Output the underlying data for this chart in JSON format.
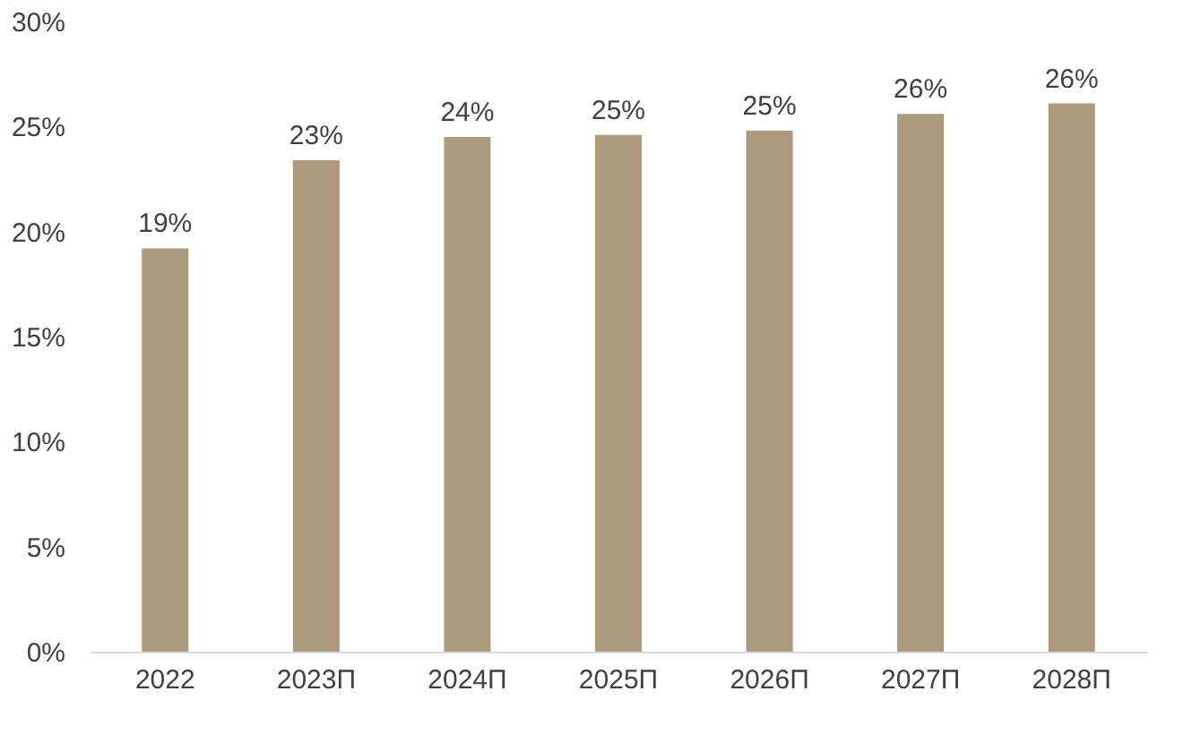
{
  "chart_data": {
    "type": "bar",
    "categories": [
      "2022",
      "2023П",
      "2024П",
      "2025П",
      "2026П",
      "2027П",
      "2028П"
    ],
    "values": [
      19.2,
      23.4,
      24.5,
      24.6,
      24.8,
      25.6,
      26.1
    ],
    "value_labels": [
      "19%",
      "23%",
      "24%",
      "25%",
      "25%",
      "26%",
      "26%"
    ],
    "color": "#ad9a7e",
    "ylim": [
      0,
      30
    ],
    "yticks": [
      {
        "value": 0,
        "label": "0%"
      },
      {
        "value": 5,
        "label": "5%"
      },
      {
        "value": 10,
        "label": "10%"
      },
      {
        "value": 15,
        "label": "15%"
      },
      {
        "value": 20,
        "label": "20%"
      },
      {
        "value": 25,
        "label": "25%"
      },
      {
        "value": 30,
        "label": "30%"
      }
    ],
    "grid": false
  }
}
